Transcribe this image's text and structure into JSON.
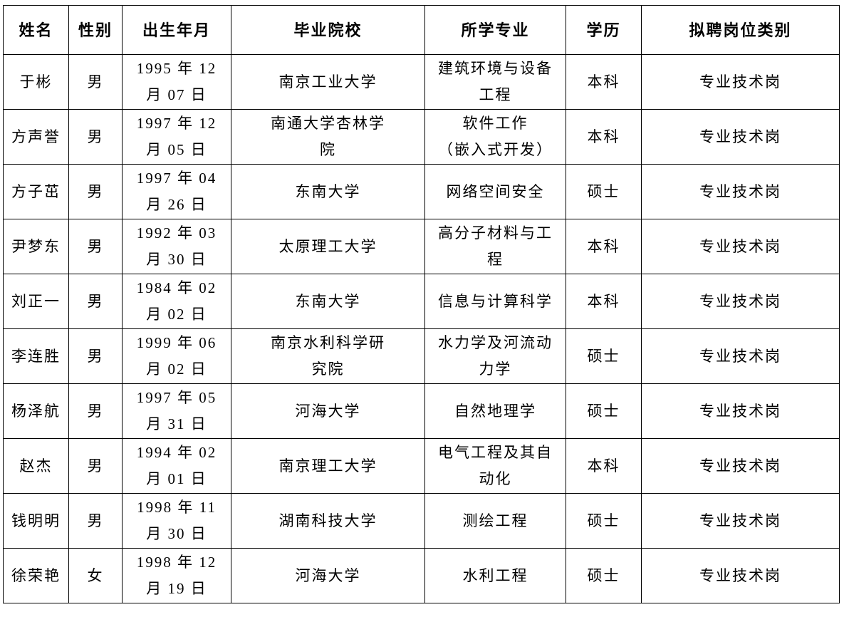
{
  "headers": [
    "姓名",
    "性别",
    "出生年月",
    "毕业院校",
    "所学专业",
    "学历",
    "拟聘岗位类别"
  ],
  "rows": [
    {
      "name": "于彬",
      "gender": "男",
      "birth": [
        "1995 年 12",
        "月 07 日"
      ],
      "school": [
        "南京工业大学"
      ],
      "major": [
        "建筑环境与设备",
        "工程"
      ],
      "degree": "本科",
      "post": "专业技术岗"
    },
    {
      "name": "方声誉",
      "gender": "男",
      "birth": [
        "1997 年 12",
        "月 05 日"
      ],
      "school": [
        "南通大学杏林学",
        "院"
      ],
      "major": [
        "软件工作",
        "（嵌入式开发）"
      ],
      "degree": "本科",
      "post": "专业技术岗"
    },
    {
      "name": "方子茁",
      "gender": "男",
      "birth": [
        "1997 年 04",
        "月 26 日"
      ],
      "school": [
        "东南大学"
      ],
      "major": [
        "网络空间安全"
      ],
      "degree": "硕士",
      "post": "专业技术岗"
    },
    {
      "name": "尹梦东",
      "gender": "男",
      "birth": [
        "1992 年 03",
        "月 30 日"
      ],
      "school": [
        "太原理工大学"
      ],
      "major": [
        "高分子材料与工",
        "程"
      ],
      "degree": "本科",
      "post": "专业技术岗"
    },
    {
      "name": "刘正一",
      "gender": "男",
      "birth": [
        "1984 年 02",
        "月 02 日"
      ],
      "school": [
        "东南大学"
      ],
      "major": [
        "信息与计算科学"
      ],
      "degree": "本科",
      "post": "专业技术岗"
    },
    {
      "name": "李连胜",
      "gender": "男",
      "birth": [
        "1999 年 06",
        "月 02 日"
      ],
      "school": [
        "南京水利科学研",
        "究院"
      ],
      "major": [
        "水力学及河流动",
        "力学"
      ],
      "degree": "硕士",
      "post": "专业技术岗"
    },
    {
      "name": "杨泽航",
      "gender": "男",
      "birth": [
        "1997 年 05",
        "月 31 日"
      ],
      "school": [
        "河海大学"
      ],
      "major": [
        "自然地理学"
      ],
      "degree": "硕士",
      "post": "专业技术岗"
    },
    {
      "name": "赵杰",
      "gender": "男",
      "birth": [
        "1994 年 02",
        "月 01 日"
      ],
      "school": [
        "南京理工大学"
      ],
      "major": [
        "电气工程及其自",
        "动化"
      ],
      "degree": "本科",
      "post": "专业技术岗"
    },
    {
      "name": "钱明明",
      "gender": "男",
      "birth": [
        "1998 年 11",
        "月 30 日"
      ],
      "school": [
        "湖南科技大学"
      ],
      "major": [
        "测绘工程"
      ],
      "degree": "硕士",
      "post": "专业技术岗"
    },
    {
      "name": "徐荣艳",
      "gender": "女",
      "birth": [
        "1998 年 12",
        "月 19 日"
      ],
      "school": [
        "河海大学"
      ],
      "major": [
        "水利工程"
      ],
      "degree": "硕士",
      "post": "专业技术岗"
    }
  ]
}
